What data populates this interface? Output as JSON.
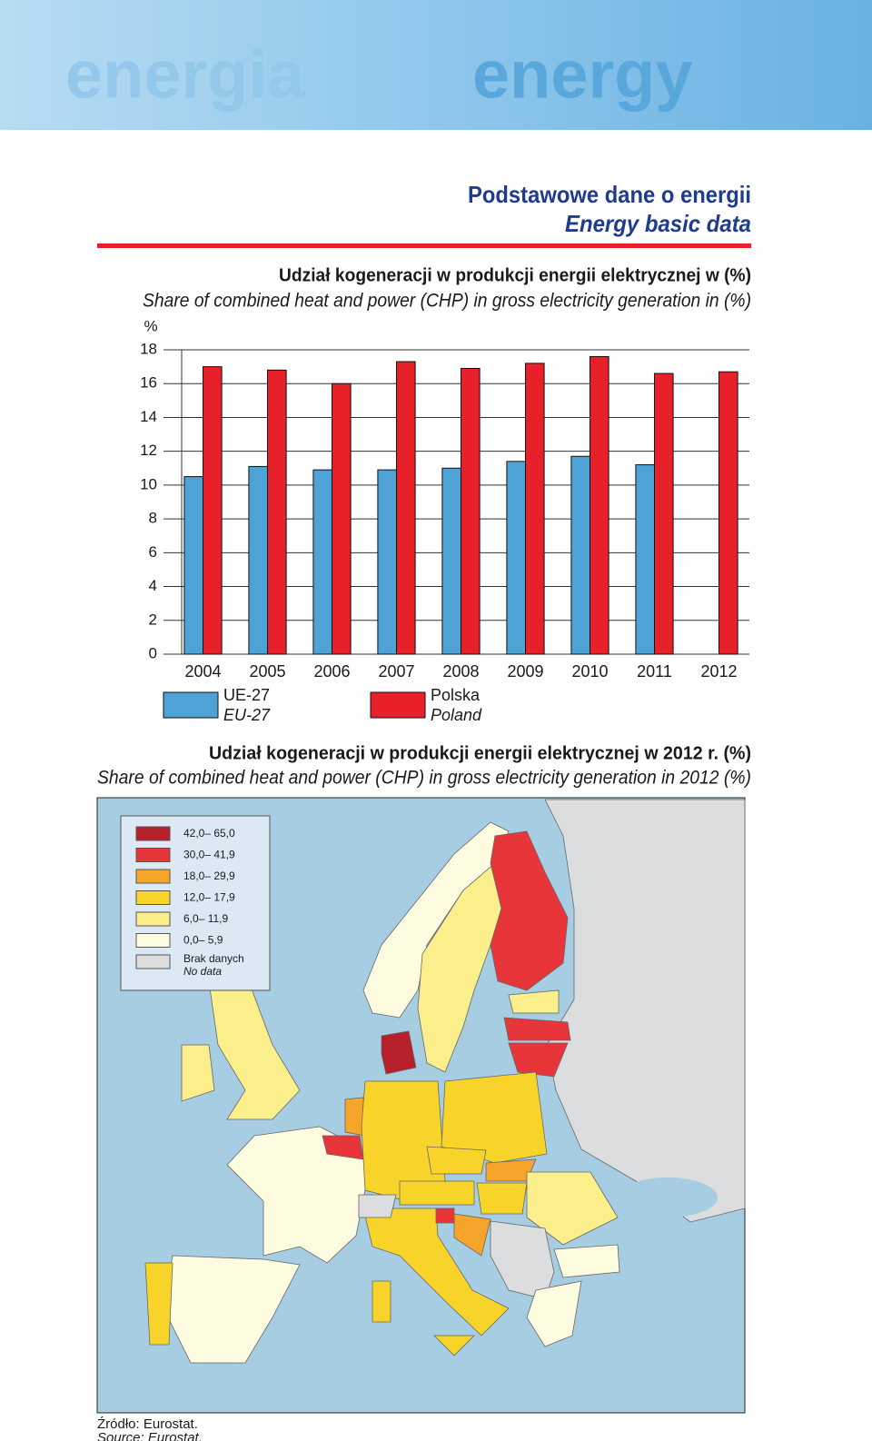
{
  "header": {
    "words": [
      "energia",
      "energy"
    ]
  },
  "section": {
    "title": "Podstawowe dane o energii",
    "title_en": "Energy basic data"
  },
  "chart_data": {
    "type": "bar",
    "title": "Udział kogeneracji w produkcji energii elektrycznej w (%)",
    "subtitle": "Share of combined heat and power (CHP) in gross electricity generation in (%)",
    "y_label": "%",
    "categories": [
      "2004",
      "2005",
      "2006",
      "2007",
      "2008",
      "2009",
      "2010",
      "2011",
      "2012"
    ],
    "series": [
      {
        "name": "UE-27",
        "name_en": "EU-27",
        "color": "#4ea2d6",
        "values": [
          10.5,
          11.1,
          10.9,
          10.9,
          11.0,
          11.4,
          11.7,
          11.2,
          null
        ]
      },
      {
        "name": "Polska",
        "name_en": "Poland",
        "color": "#e8202a",
        "values": [
          17.0,
          16.8,
          16.0,
          17.3,
          16.9,
          17.2,
          17.6,
          16.6,
          16.7
        ]
      }
    ],
    "ylim": [
      0,
      18
    ],
    "yticks": [
      0,
      2,
      4,
      6,
      8,
      10,
      12,
      14,
      16,
      18
    ],
    "grid": true
  },
  "map": {
    "title": "Udział kogeneracji w produkcji energii elektrycznej  w 2012 r. (%)",
    "subtitle": "Share of combined heat and power (CHP) in gross electricity generation in 2012 (%)",
    "legend": [
      {
        "label": "42,0– 65,0",
        "color": "#b71f2a"
      },
      {
        "label": "30,0– 41,9",
        "color": "#e8353a"
      },
      {
        "label": "18,0– 29,9",
        "color": "#f5a62a"
      },
      {
        "label": "12,0– 17,9",
        "color": "#f8d42a"
      },
      {
        "label": "6,0– 11,9",
        "color": "#fbef8c"
      },
      {
        "label": "0,0– 5,9",
        "color": "#fdfbe0"
      },
      {
        "label": "Brak danych",
        "label_en": "No data",
        "color": "#dcdddf"
      }
    ]
  },
  "source": {
    "text": "Źródło: Eurostat.",
    "text_en": "Source: Eurostat."
  }
}
